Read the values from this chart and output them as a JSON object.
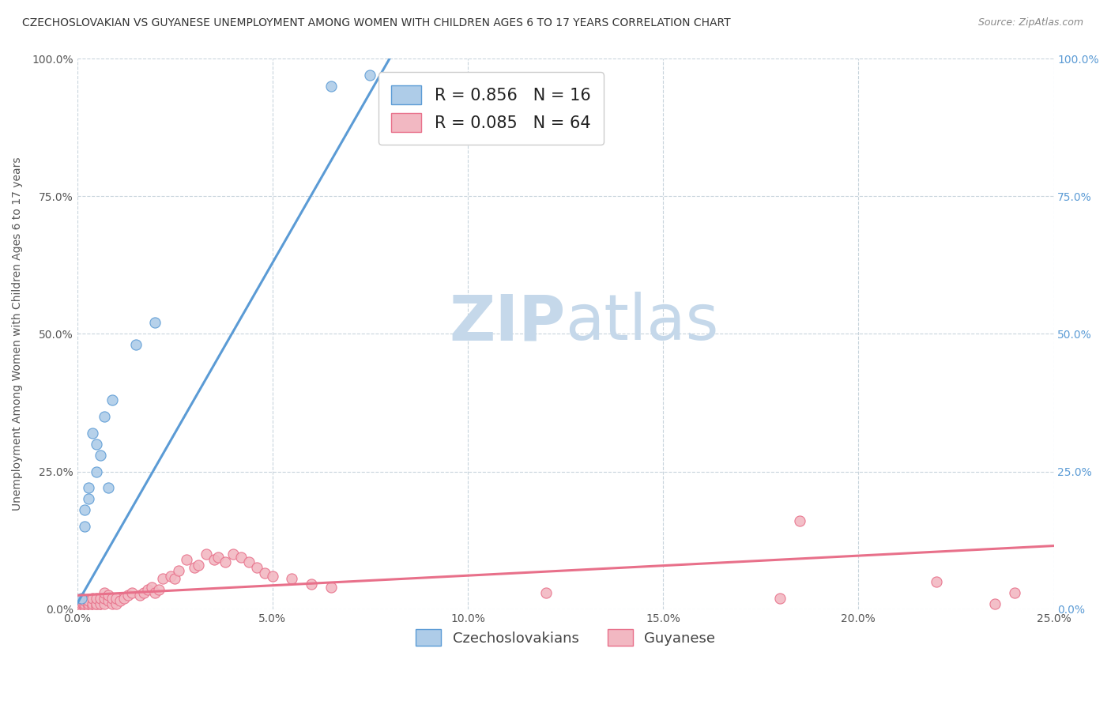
{
  "title": "CZECHOSLOVAKIAN VS GUYANESE UNEMPLOYMENT AMONG WOMEN WITH CHILDREN AGES 6 TO 17 YEARS CORRELATION CHART",
  "source": "Source: ZipAtlas.com",
  "xlim": [
    0,
    0.25
  ],
  "ylim": [
    0,
    1.0
  ],
  "czech_color": "#5b9bd5",
  "czech_color_fill": "#aecce8",
  "guyanese_color": "#e8708a",
  "guyanese_color_fill": "#f2b8c2",
  "czech_R": 0.856,
  "czech_N": 16,
  "guyanese_R": 0.085,
  "guyanese_N": 64,
  "watermark_zip": "ZIP",
  "watermark_atlas": "atlas",
  "watermark_color": "#c5d8ea",
  "czech_scatter_x": [
    0.001,
    0.002,
    0.002,
    0.003,
    0.003,
    0.004,
    0.005,
    0.005,
    0.006,
    0.007,
    0.008,
    0.009,
    0.015,
    0.02,
    0.065,
    0.075
  ],
  "czech_scatter_y": [
    0.02,
    0.15,
    0.18,
    0.22,
    0.2,
    0.32,
    0.3,
    0.25,
    0.28,
    0.35,
    0.22,
    0.38,
    0.48,
    0.52,
    0.95,
    0.97
  ],
  "guyanese_scatter_x": [
    0.0005,
    0.001,
    0.001,
    0.001,
    0.0015,
    0.002,
    0.002,
    0.002,
    0.003,
    0.003,
    0.003,
    0.004,
    0.004,
    0.004,
    0.005,
    0.005,
    0.005,
    0.006,
    0.006,
    0.007,
    0.007,
    0.007,
    0.008,
    0.008,
    0.009,
    0.009,
    0.01,
    0.01,
    0.011,
    0.012,
    0.013,
    0.014,
    0.016,
    0.017,
    0.018,
    0.019,
    0.02,
    0.021,
    0.022,
    0.024,
    0.025,
    0.026,
    0.028,
    0.03,
    0.031,
    0.033,
    0.035,
    0.036,
    0.038,
    0.04,
    0.042,
    0.044,
    0.046,
    0.048,
    0.05,
    0.055,
    0.06,
    0.065,
    0.12,
    0.18,
    0.185,
    0.22,
    0.235,
    0.24
  ],
  "guyanese_scatter_y": [
    0.01,
    0.005,
    0.01,
    0.015,
    0.01,
    0.005,
    0.01,
    0.015,
    0.005,
    0.01,
    0.015,
    0.005,
    0.01,
    0.02,
    0.005,
    0.01,
    0.02,
    0.01,
    0.02,
    0.01,
    0.02,
    0.03,
    0.015,
    0.025,
    0.01,
    0.02,
    0.01,
    0.02,
    0.015,
    0.02,
    0.025,
    0.03,
    0.025,
    0.03,
    0.035,
    0.04,
    0.03,
    0.035,
    0.055,
    0.06,
    0.055,
    0.07,
    0.09,
    0.075,
    0.08,
    0.1,
    0.09,
    0.095,
    0.085,
    0.1,
    0.095,
    0.085,
    0.075,
    0.065,
    0.06,
    0.055,
    0.045,
    0.04,
    0.03,
    0.02,
    0.16,
    0.05,
    0.01,
    0.03
  ],
  "legend_label_czech": "Czechoslovakians",
  "legend_label_guyanese": "Guyanese",
  "background_color": "#ffffff",
  "grid_color": "#c8d4dc",
  "right_axis_color": "#5b9bd5",
  "left_axis_color": "#555555"
}
